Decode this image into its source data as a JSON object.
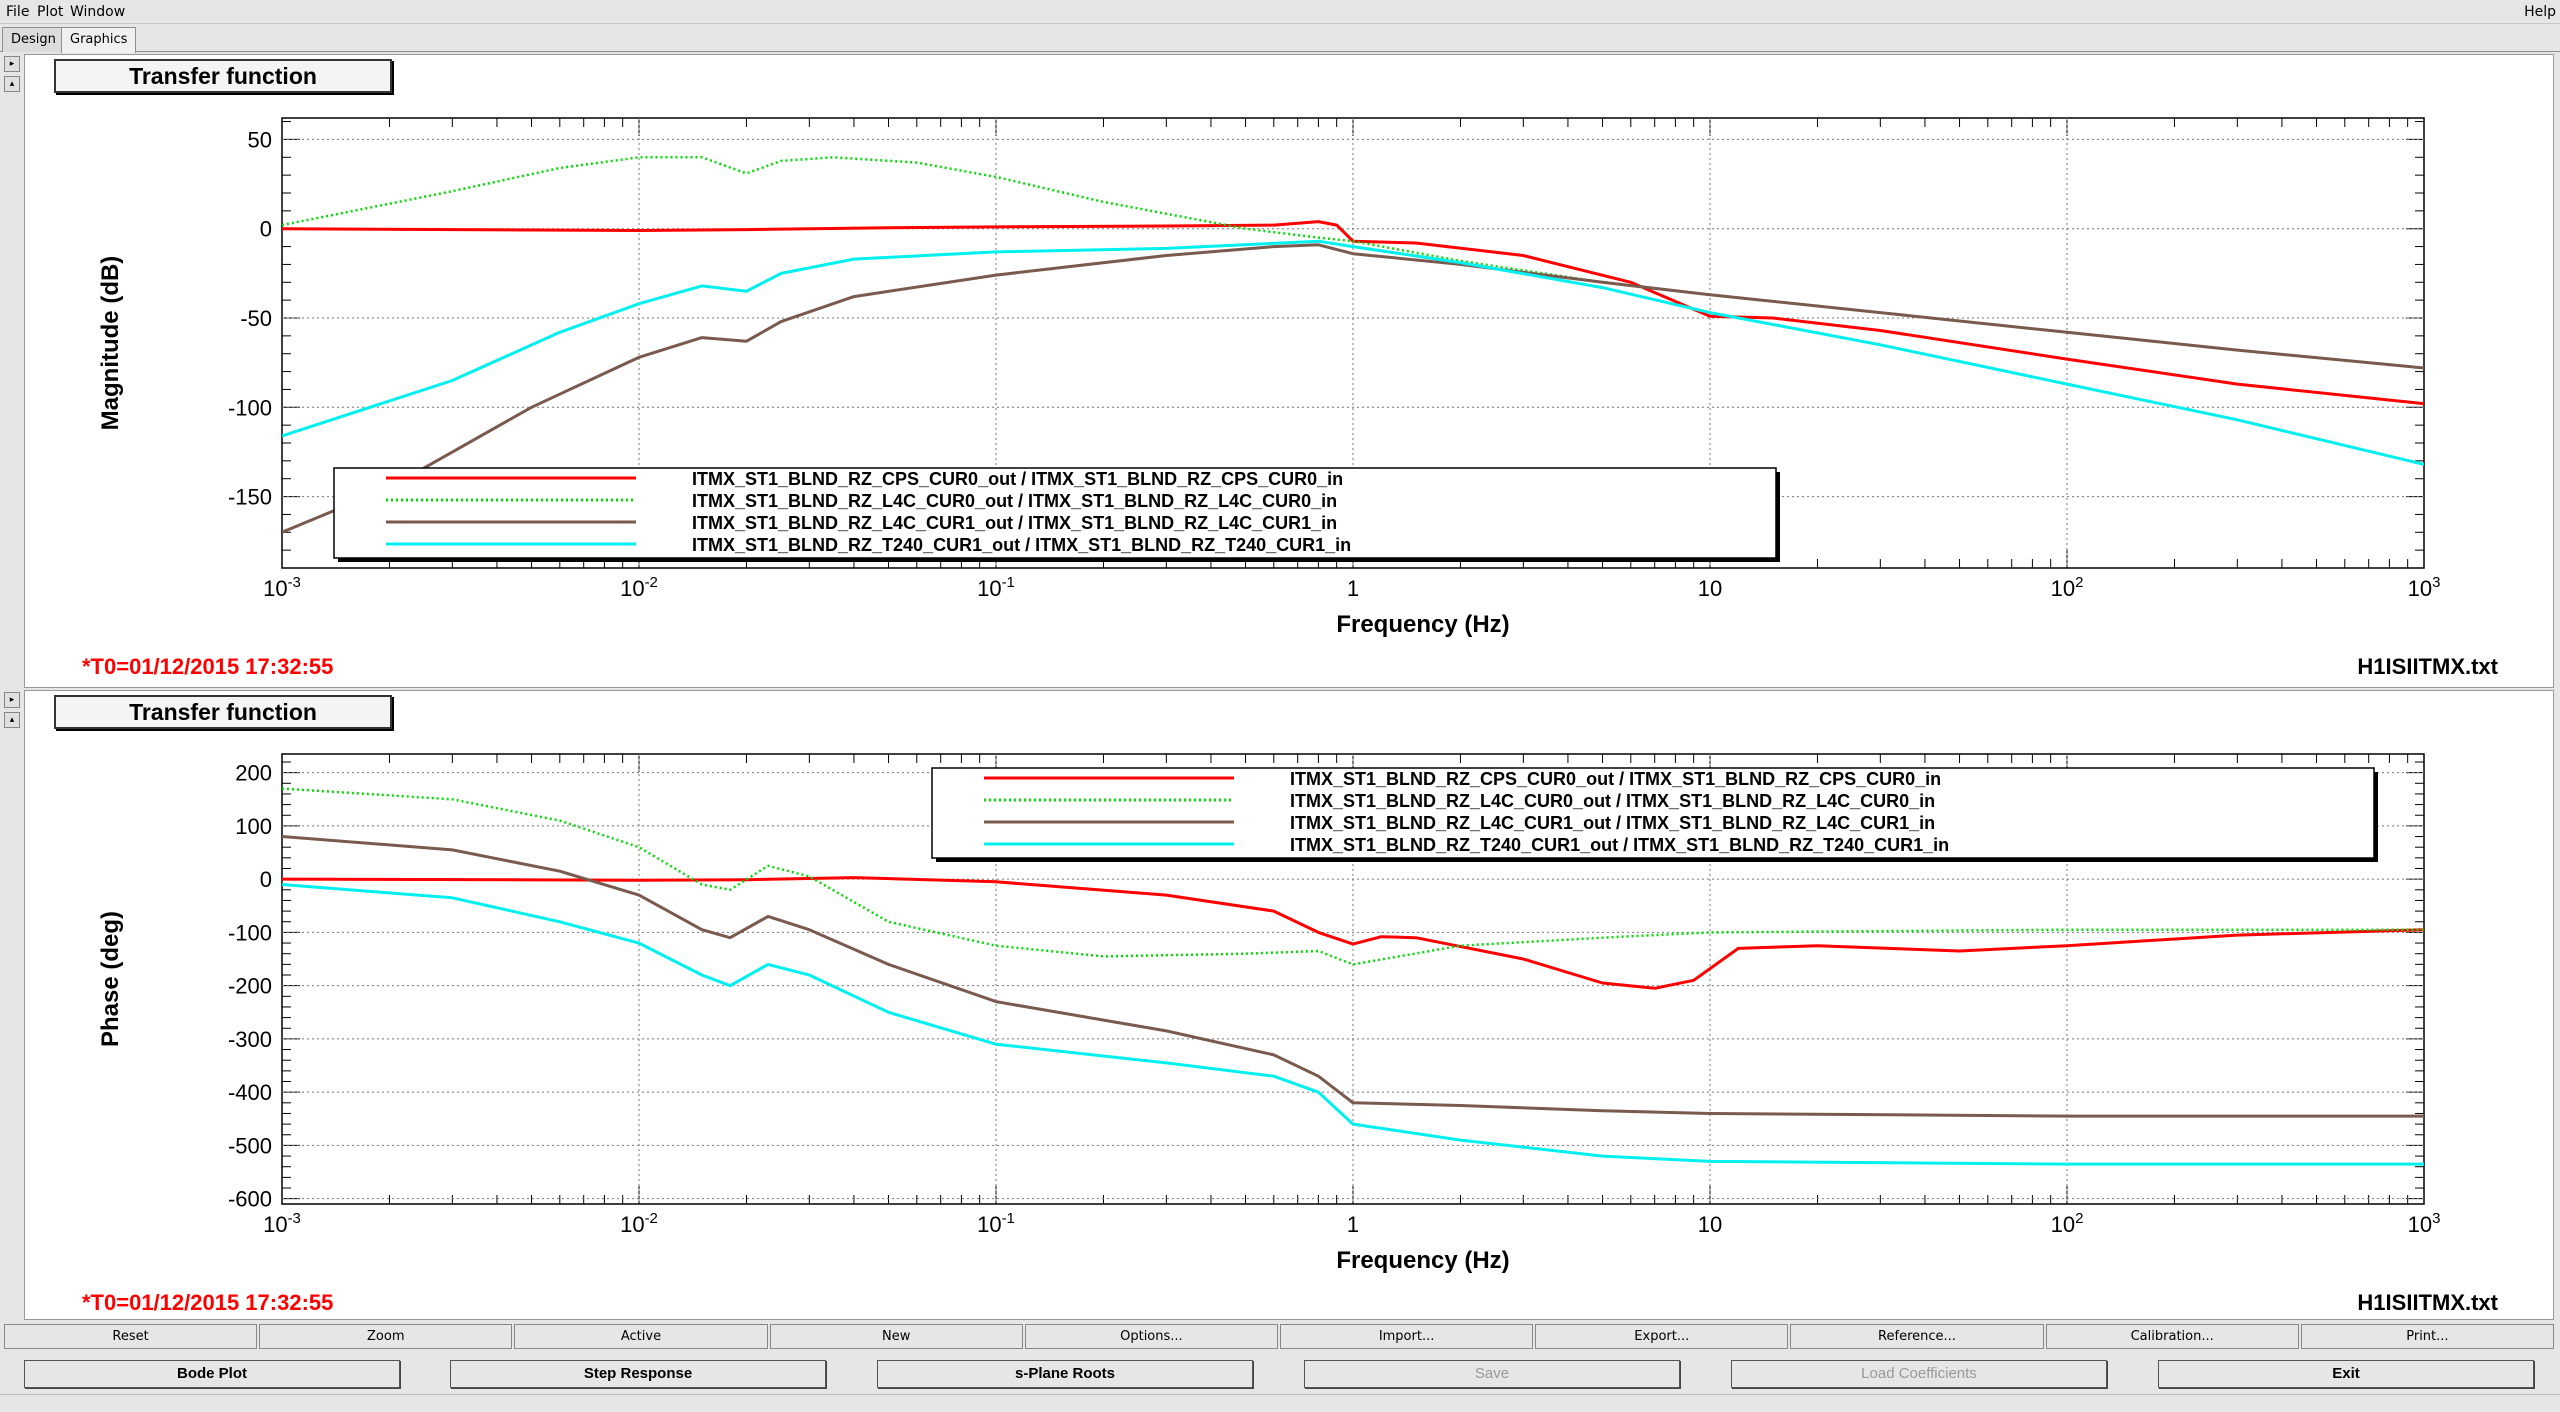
{
  "menu": [
    {
      "label": "File",
      "key": "F"
    },
    {
      "label": "Plot",
      "key": "P"
    },
    {
      "label": "Window",
      "key": "W"
    }
  ],
  "help": "Help",
  "tabs": [
    "Design",
    "Graphics"
  ],
  "active_tab": "Graphics",
  "colors": {
    "red": "#ff0000",
    "green": "#00dd00",
    "brown": "#7a5a4e",
    "cyan": "#00f0f0"
  },
  "panels": [
    {
      "title": "Transfer function",
      "timestamp": "*T0=01/12/2015 17:32:55",
      "filename": "H1ISIITMX.txt"
    },
    {
      "title": "Transfer function",
      "timestamp": "*T0=01/12/2015 17:32:55",
      "filename": "H1ISIITMX.txt"
    }
  ],
  "chart_data": [
    {
      "type": "line",
      "xlabel": "Frequency (Hz)",
      "ylabel": "Magnitude (dB)",
      "xscale": "log",
      "xlim": [
        0.001,
        1000
      ],
      "ylim": [
        -190,
        62
      ],
      "yticks": [
        50,
        0,
        -50,
        -100,
        -150
      ],
      "xticks": [
        {
          "v": 0.001,
          "base": "10",
          "exp": "-3"
        },
        {
          "v": 0.01,
          "base": "10",
          "exp": "-2"
        },
        {
          "v": 0.1,
          "base": "10",
          "exp": "-1"
        },
        {
          "v": 1,
          "base": "1",
          "exp": ""
        },
        {
          "v": 10,
          "base": "10",
          "exp": ""
        },
        {
          "v": 100,
          "base": "10",
          "exp": "2"
        },
        {
          "v": 1000,
          "base": "10",
          "exp": "3"
        }
      ],
      "grid": true,
      "legend_position": "bottom-left",
      "series": [
        {
          "name": "ITMX_ST1_BLND_RZ_CPS_CUR0_out / ITMX_ST1_BLND_RZ_CPS_CUR0_in",
          "color": "red",
          "dash": "solid",
          "points": [
            [
              0.001,
              0
            ],
            [
              0.01,
              -1
            ],
            [
              0.02,
              -0.5
            ],
            [
              0.05,
              0.5
            ],
            [
              0.1,
              1
            ],
            [
              0.3,
              1.5
            ],
            [
              0.6,
              2
            ],
            [
              0.8,
              4
            ],
            [
              0.9,
              2
            ],
            [
              1,
              -7
            ],
            [
              1.5,
              -8
            ],
            [
              3,
              -15
            ],
            [
              6,
              -30
            ],
            [
              10,
              -49
            ],
            [
              15,
              -50
            ],
            [
              30,
              -57
            ],
            [
              100,
              -73
            ],
            [
              300,
              -87
            ],
            [
              1000,
              -98
            ]
          ]
        },
        {
          "name": "ITMX_ST1_BLND_RZ_L4C_CUR0_out / ITMX_ST1_BLND_RZ_L4C_CUR0_in",
          "color": "green",
          "dash": "dotted",
          "points": [
            [
              0.001,
              2
            ],
            [
              0.003,
              21
            ],
            [
              0.006,
              34
            ],
            [
              0.01,
              40
            ],
            [
              0.015,
              40
            ],
            [
              0.02,
              31
            ],
            [
              0.025,
              38
            ],
            [
              0.035,
              40
            ],
            [
              0.06,
              37
            ],
            [
              0.1,
              29
            ],
            [
              0.2,
              15
            ],
            [
              0.5,
              0
            ],
            [
              0.8,
              -5
            ],
            [
              1,
              -7
            ],
            [
              2,
              -18
            ],
            [
              5,
              -30
            ],
            [
              10,
              -37
            ],
            [
              30,
              -47
            ],
            [
              100,
              -58
            ],
            [
              300,
              -68
            ],
            [
              1000,
              -78
            ]
          ]
        },
        {
          "name": "ITMX_ST1_BLND_RZ_L4C_CUR1_out / ITMX_ST1_BLND_RZ_L4C_CUR1_in",
          "color": "brown",
          "dash": "solid",
          "points": [
            [
              0.001,
              -170
            ],
            [
              0.002,
              -145
            ],
            [
              0.005,
              -100
            ],
            [
              0.01,
              -72
            ],
            [
              0.015,
              -61
            ],
            [
              0.02,
              -63
            ],
            [
              0.025,
              -52
            ],
            [
              0.04,
              -38
            ],
            [
              0.1,
              -26
            ],
            [
              0.3,
              -15
            ],
            [
              0.6,
              -10
            ],
            [
              0.8,
              -9
            ],
            [
              1,
              -14
            ],
            [
              2,
              -20
            ],
            [
              5,
              -30
            ],
            [
              10,
              -37
            ],
            [
              30,
              -47
            ],
            [
              100,
              -58
            ],
            [
              300,
              -68
            ],
            [
              1000,
              -78
            ]
          ]
        },
        {
          "name": "ITMX_ST1_BLND_RZ_T240_CUR1_out / ITMX_ST1_BLND_RZ_T240_CUR1_in",
          "color": "cyan",
          "dash": "solid",
          "points": [
            [
              0.001,
              -116
            ],
            [
              0.003,
              -85
            ],
            [
              0.006,
              -58
            ],
            [
              0.01,
              -42
            ],
            [
              0.015,
              -32
            ],
            [
              0.02,
              -35
            ],
            [
              0.025,
              -25
            ],
            [
              0.04,
              -17
            ],
            [
              0.1,
              -13
            ],
            [
              0.3,
              -11
            ],
            [
              0.8,
              -7
            ],
            [
              1,
              -10
            ],
            [
              2,
              -19
            ],
            [
              5,
              -33
            ],
            [
              10,
              -47
            ],
            [
              30,
              -65
            ],
            [
              100,
              -87
            ],
            [
              300,
              -107
            ],
            [
              1000,
              -132
            ]
          ]
        }
      ]
    },
    {
      "type": "line",
      "xlabel": "Frequency (Hz)",
      "ylabel": "Phase (deg)",
      "xscale": "log",
      "xlim": [
        0.001,
        1000
      ],
      "ylim": [
        -610,
        235
      ],
      "yticks": [
        200,
        100,
        0,
        -100,
        -200,
        -300,
        -400,
        -500,
        -600
      ],
      "xticks": [
        {
          "v": 0.001,
          "base": "10",
          "exp": "-3"
        },
        {
          "v": 0.01,
          "base": "10",
          "exp": "-2"
        },
        {
          "v": 0.1,
          "base": "10",
          "exp": "-1"
        },
        {
          "v": 1,
          "base": "1",
          "exp": ""
        },
        {
          "v": 10,
          "base": "10",
          "exp": ""
        },
        {
          "v": 100,
          "base": "10",
          "exp": "2"
        },
        {
          "v": 1000,
          "base": "10",
          "exp": "3"
        }
      ],
      "grid": true,
      "legend_position": "top-center",
      "series": [
        {
          "name": "ITMX_ST1_BLND_RZ_CPS_CUR0_out / ITMX_ST1_BLND_RZ_CPS_CUR0_in",
          "color": "red",
          "dash": "solid",
          "points": [
            [
              0.001,
              0
            ],
            [
              0.01,
              -2
            ],
            [
              0.02,
              -1
            ],
            [
              0.04,
              3
            ],
            [
              0.1,
              -5
            ],
            [
              0.3,
              -30
            ],
            [
              0.6,
              -60
            ],
            [
              0.8,
              -100
            ],
            [
              1,
              -122
            ],
            [
              1.2,
              -108
            ],
            [
              1.5,
              -110
            ],
            [
              3,
              -150
            ],
            [
              5,
              -195
            ],
            [
              7,
              -205
            ],
            [
              9,
              -190
            ],
            [
              12,
              -130
            ],
            [
              20,
              -125
            ],
            [
              50,
              -135
            ],
            [
              100,
              -125
            ],
            [
              300,
              -105
            ],
            [
              1000,
              -95
            ]
          ]
        },
        {
          "name": "ITMX_ST1_BLND_RZ_L4C_CUR0_out / ITMX_ST1_BLND_RZ_L4C_CUR0_in",
          "color": "green",
          "dash": "dotted",
          "points": [
            [
              0.001,
              170
            ],
            [
              0.003,
              150
            ],
            [
              0.006,
              110
            ],
            [
              0.01,
              60
            ],
            [
              0.015,
              -10
            ],
            [
              0.018,
              -20
            ],
            [
              0.023,
              25
            ],
            [
              0.03,
              5
            ],
            [
              0.05,
              -80
            ],
            [
              0.1,
              -125
            ],
            [
              0.2,
              -145
            ],
            [
              0.5,
              -140
            ],
            [
              0.8,
              -135
            ],
            [
              1,
              -160
            ],
            [
              2,
              -125
            ],
            [
              5,
              -110
            ],
            [
              10,
              -100
            ],
            [
              100,
              -95
            ],
            [
              1000,
              -95
            ]
          ]
        },
        {
          "name": "ITMX_ST1_BLND_RZ_L4C_CUR1_out / ITMX_ST1_BLND_RZ_L4C_CUR1_in",
          "color": "brown",
          "dash": "solid",
          "points": [
            [
              0.001,
              80
            ],
            [
              0.003,
              55
            ],
            [
              0.006,
              15
            ],
            [
              0.01,
              -30
            ],
            [
              0.015,
              -95
            ],
            [
              0.018,
              -110
            ],
            [
              0.023,
              -70
            ],
            [
              0.03,
              -95
            ],
            [
              0.05,
              -160
            ],
            [
              0.1,
              -230
            ],
            [
              0.3,
              -285
            ],
            [
              0.6,
              -330
            ],
            [
              0.8,
              -370
            ],
            [
              1,
              -420
            ],
            [
              2,
              -425
            ],
            [
              5,
              -435
            ],
            [
              10,
              -440
            ],
            [
              100,
              -445
            ],
            [
              1000,
              -445
            ]
          ]
        },
        {
          "name": "ITMX_ST1_BLND_RZ_T240_CUR1_out / ITMX_ST1_BLND_RZ_T240_CUR1_in",
          "color": "cyan",
          "dash": "solid",
          "points": [
            [
              0.001,
              -10
            ],
            [
              0.003,
              -35
            ],
            [
              0.006,
              -80
            ],
            [
              0.01,
              -120
            ],
            [
              0.015,
              -180
            ],
            [
              0.018,
              -200
            ],
            [
              0.023,
              -160
            ],
            [
              0.03,
              -180
            ],
            [
              0.05,
              -250
            ],
            [
              0.1,
              -310
            ],
            [
              0.3,
              -345
            ],
            [
              0.6,
              -370
            ],
            [
              0.8,
              -400
            ],
            [
              1,
              -460
            ],
            [
              2,
              -490
            ],
            [
              5,
              -520
            ],
            [
              10,
              -530
            ],
            [
              100,
              -535
            ],
            [
              1000,
              -535
            ]
          ]
        }
      ]
    }
  ],
  "toolbar": [
    "Reset",
    "Zoom",
    "Active",
    "New",
    "Options...",
    "Import...",
    "Export...",
    "Reference...",
    "Calibration...",
    "Print..."
  ],
  "bottom_buttons": [
    {
      "label": "Bode Plot",
      "enabled": true
    },
    {
      "label": "Step Response",
      "enabled": true
    },
    {
      "label": "s-Plane Roots",
      "enabled": true
    },
    {
      "label": "Save",
      "enabled": false
    },
    {
      "label": "Load Coefficients",
      "enabled": false
    },
    {
      "label": "Exit",
      "enabled": true
    }
  ]
}
